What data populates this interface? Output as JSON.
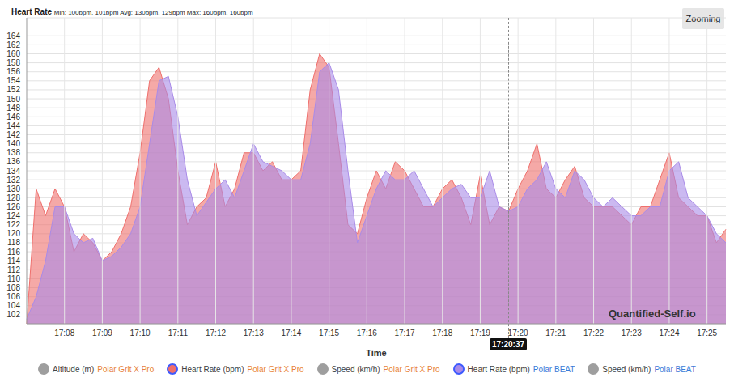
{
  "chart_data": {
    "type": "area",
    "title": "Heart Rate",
    "subtitle": "Min: 100bpm, 101bpm Avg: 130bpm, 129bpm Max: 160bpm, 160bpm",
    "x_label": "Time",
    "categories": [
      null,
      null,
      null,
      null,
      "17:08",
      null,
      null,
      null,
      "17:09",
      null,
      null,
      null,
      "17:10",
      null,
      null,
      null,
      "17:11",
      null,
      null,
      null,
      "17:12",
      null,
      null,
      null,
      "17:13",
      null,
      null,
      null,
      "17:14",
      null,
      null,
      null,
      "17:15",
      null,
      null,
      null,
      "17:16",
      null,
      null,
      null,
      "17:17",
      null,
      null,
      null,
      "17:18",
      null,
      null,
      null,
      "17:19",
      null,
      null,
      null,
      "17:20",
      null,
      null,
      null,
      "17:21",
      null,
      null,
      null,
      "17:22",
      null,
      null,
      null,
      "17:23",
      null,
      null,
      null,
      "17:24",
      null,
      null,
      null,
      "17:25",
      null,
      null
    ],
    "series": [
      {
        "name": "Altitude (m)",
        "device": "Polar Grit X Pro",
        "color": "#9e9e9e",
        "values": null
      },
      {
        "name": "Heart Rate (bpm)",
        "device": "Polar Grit X Pro",
        "color": "#ef6f6c",
        "values": [
          100,
          130,
          124,
          130,
          126,
          116,
          120,
          118,
          114,
          116,
          120,
          126,
          138,
          154,
          157,
          150,
          134,
          122,
          126,
          128,
          136,
          126,
          130,
          138,
          138,
          134,
          136,
          132,
          132,
          134,
          152,
          160,
          157,
          140,
          122,
          120,
          128,
          134,
          130,
          136,
          134,
          130,
          126,
          126,
          130,
          132,
          128,
          122,
          133,
          122,
          126,
          125,
          130,
          134,
          140,
          130,
          128,
          132,
          135,
          128,
          126,
          126,
          126,
          124,
          122,
          126,
          126,
          132,
          138,
          128,
          126,
          124,
          124,
          118,
          121
        ]
      },
      {
        "name": "Speed (km/h)",
        "device": "Polar Grit X Pro",
        "color": "#9e9e9e",
        "values": null
      },
      {
        "name": "Heart Rate (bpm)",
        "device": "Polar BEAT",
        "color": "#a98be8",
        "values": [
          101,
          106,
          114,
          126,
          126,
          120,
          118,
          119,
          114,
          115,
          117,
          120,
          126,
          140,
          154,
          155,
          146,
          132,
          124,
          127,
          130,
          132,
          128,
          134,
          140,
          136,
          135,
          134,
          132,
          132,
          140,
          156,
          158,
          152,
          134,
          118,
          124,
          130,
          134,
          132,
          132,
          134,
          130,
          126,
          128,
          130,
          131,
          128,
          128,
          134,
          126,
          125,
          126,
          130,
          132,
          136,
          130,
          128,
          134,
          132,
          128,
          126,
          128,
          126,
          124,
          124,
          126,
          126,
          134,
          136,
          128,
          126,
          124,
          120,
          118
        ]
      },
      {
        "name": "Speed (km/h)",
        "device": "Polar BEAT",
        "color": "#9e9e9e",
        "values": null
      }
    ],
    "ylim": [
      100,
      168
    ],
    "yticks": [
      102,
      104,
      106,
      108,
      110,
      112,
      114,
      116,
      118,
      120,
      122,
      124,
      126,
      128,
      130,
      132,
      134,
      136,
      138,
      140,
      142,
      144,
      146,
      148,
      150,
      152,
      154,
      156,
      158,
      160,
      162,
      164
    ],
    "grid": true,
    "legend": "bottom",
    "watermark": "Quantified-Self.io",
    "button": "Zooming",
    "cursor_label": "17:20:37"
  }
}
